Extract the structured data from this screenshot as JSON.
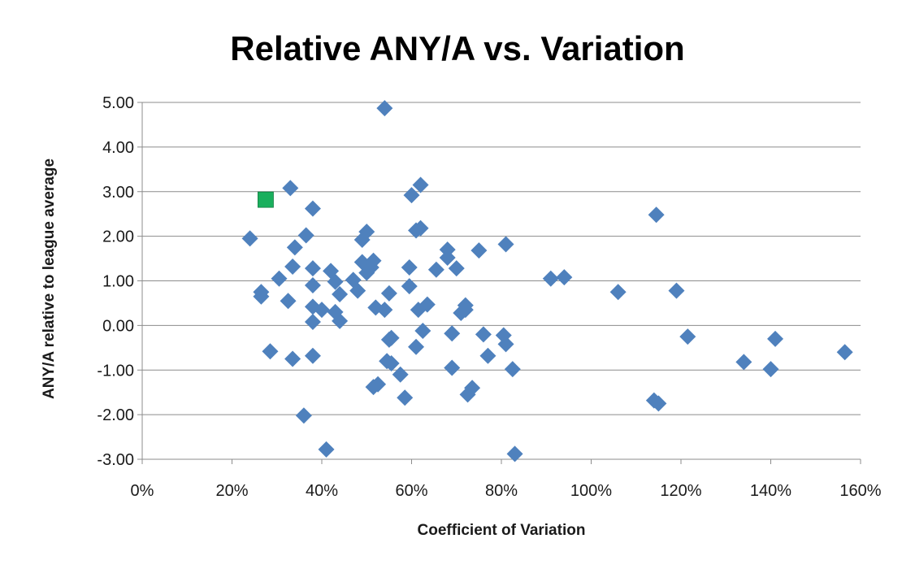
{
  "chart_data": {
    "type": "scatter",
    "title": "Relative ANY/A vs. Variation",
    "xlabel": "Coefficient of Variation",
    "ylabel": "ANY/A relative to league average",
    "xlim": [
      0,
      1.6
    ],
    "ylim": [
      -3.0,
      5.0
    ],
    "x_ticks": [
      0,
      0.2,
      0.4,
      0.6,
      0.8,
      1.0,
      1.2,
      1.4,
      1.6
    ],
    "x_tick_labels": [
      "0%",
      "20%",
      "40%",
      "60%",
      "80%",
      "100%",
      "120%",
      "140%",
      "160%"
    ],
    "y_ticks": [
      5,
      4,
      3,
      2,
      1,
      0,
      -1,
      -2,
      -3
    ],
    "y_tick_labels": [
      "5.00",
      "4.00",
      "3.00",
      "2.00",
      "1.00",
      "0.00",
      "-1.00",
      "-2.00",
      "-3.00"
    ],
    "grid": "horizontal",
    "legend": "none",
    "series": [
      {
        "color": "#4f81bd",
        "marker": "diamond",
        "points": [
          [
            0.54,
            4.87
          ],
          [
            0.33,
            3.08
          ],
          [
            0.62,
            3.15
          ],
          [
            0.6,
            2.92
          ],
          [
            0.38,
            2.62
          ],
          [
            1.145,
            2.48
          ],
          [
            0.24,
            1.95
          ],
          [
            0.34,
            1.75
          ],
          [
            0.365,
            2.02
          ],
          [
            0.5,
            2.1
          ],
          [
            0.49,
            1.92
          ],
          [
            0.61,
            2.13
          ],
          [
            0.62,
            2.18
          ],
          [
            0.68,
            1.7
          ],
          [
            0.75,
            1.68
          ],
          [
            0.81,
            1.82
          ],
          [
            0.68,
            1.52
          ],
          [
            0.335,
            1.32
          ],
          [
            0.38,
            1.28
          ],
          [
            0.42,
            1.22
          ],
          [
            0.305,
            1.05
          ],
          [
            0.38,
            0.9
          ],
          [
            0.43,
            0.98
          ],
          [
            0.47,
            1.02
          ],
          [
            0.49,
            1.42
          ],
          [
            0.51,
            1.3
          ],
          [
            0.515,
            1.45
          ],
          [
            0.5,
            1.18
          ],
          [
            0.595,
            1.3
          ],
          [
            0.655,
            1.25
          ],
          [
            0.7,
            1.28
          ],
          [
            0.91,
            1.05
          ],
          [
            0.94,
            1.08
          ],
          [
            0.265,
            0.75
          ],
          [
            0.265,
            0.65
          ],
          [
            0.325,
            0.55
          ],
          [
            0.38,
            0.42
          ],
          [
            0.4,
            0.35
          ],
          [
            0.44,
            0.7
          ],
          [
            0.48,
            0.78
          ],
          [
            0.55,
            0.72
          ],
          [
            0.595,
            0.88
          ],
          [
            0.52,
            0.4
          ],
          [
            0.54,
            0.35
          ],
          [
            0.615,
            0.35
          ],
          [
            0.635,
            0.47
          ],
          [
            0.71,
            0.28
          ],
          [
            0.72,
            0.45
          ],
          [
            0.72,
            0.35
          ],
          [
            1.06,
            0.75
          ],
          [
            1.19,
            0.78
          ],
          [
            0.38,
            0.08
          ],
          [
            0.44,
            0.1
          ],
          [
            0.43,
            0.3
          ],
          [
            0.625,
            -0.12
          ],
          [
            0.69,
            -0.18
          ],
          [
            0.55,
            -0.32
          ],
          [
            0.555,
            -0.28
          ],
          [
            0.76,
            -0.2
          ],
          [
            0.805,
            -0.22
          ],
          [
            0.81,
            -0.42
          ],
          [
            0.61,
            -0.48
          ],
          [
            1.215,
            -0.25
          ],
          [
            1.41,
            -0.3
          ],
          [
            0.285,
            -0.58
          ],
          [
            0.335,
            -0.75
          ],
          [
            0.38,
            -0.68
          ],
          [
            0.545,
            -0.8
          ],
          [
            0.555,
            -0.85
          ],
          [
            0.575,
            -1.1
          ],
          [
            0.69,
            -0.95
          ],
          [
            0.77,
            -0.68
          ],
          [
            0.825,
            -0.98
          ],
          [
            1.34,
            -0.82
          ],
          [
            1.4,
            -0.98
          ],
          [
            1.565,
            -0.6
          ],
          [
            0.515,
            -1.38
          ],
          [
            0.525,
            -1.32
          ],
          [
            0.585,
            -1.62
          ],
          [
            0.725,
            -1.55
          ],
          [
            0.735,
            -1.4
          ],
          [
            1.14,
            -1.68
          ],
          [
            1.15,
            -1.75
          ],
          [
            0.36,
            -2.02
          ],
          [
            0.41,
            -2.78
          ],
          [
            0.83,
            -2.88
          ]
        ]
      },
      {
        "color": "#1aaf5d",
        "marker": "square",
        "points": [
          [
            0.275,
            2.82
          ]
        ]
      }
    ]
  }
}
